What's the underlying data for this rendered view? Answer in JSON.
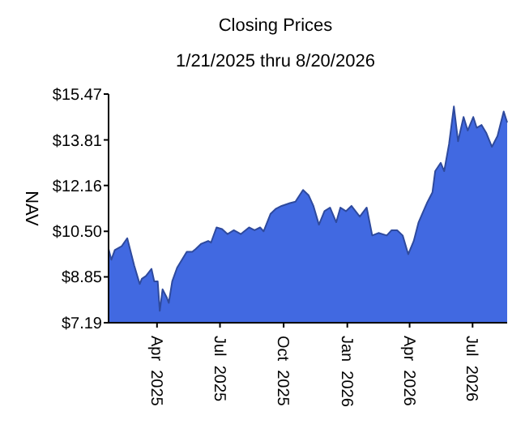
{
  "chart_data": {
    "type": "area",
    "title": "Closing Prices",
    "subtitle": "1/21/2025 thru 8/20/2026",
    "ylabel": "NAV",
    "x": [
      "2025-01-21",
      "2025-01-25",
      "2025-01-30",
      "2025-02-09",
      "2025-02-17",
      "2025-02-19",
      "2025-02-27",
      "2025-03-07",
      "2025-03-10",
      "2025-03-16",
      "2025-03-24",
      "2025-03-28",
      "2025-04-02",
      "2025-04-05",
      "2025-04-09",
      "2025-04-15",
      "2025-04-18",
      "2025-04-23",
      "2025-04-30",
      "2025-05-14",
      "2025-05-22",
      "2025-05-27",
      "2025-06-04",
      "2025-06-14",
      "2025-06-18",
      "2025-06-26",
      "2025-07-04",
      "2025-07-12",
      "2025-07-21",
      "2025-07-31",
      "2025-08-12",
      "2025-08-20",
      "2025-08-28",
      "2025-09-02",
      "2025-09-12",
      "2025-09-20",
      "2025-09-28",
      "2025-10-10",
      "2025-10-18",
      "2025-10-29",
      "2025-11-06",
      "2025-11-13",
      "2025-11-21",
      "2025-11-29",
      "2025-12-07",
      "2025-12-16",
      "2025-12-22",
      "2025-12-30",
      "2026-01-07",
      "2026-01-19",
      "2026-01-29",
      "2026-02-06",
      "2026-02-15",
      "2026-02-27",
      "2026-03-06",
      "2026-03-14",
      "2026-03-22",
      "2026-03-30",
      "2026-04-07",
      "2026-04-14",
      "2026-04-26",
      "2026-05-04",
      "2026-05-08",
      "2026-05-16",
      "2026-05-21",
      "2026-05-28",
      "2026-06-04",
      "2026-06-10",
      "2026-06-18",
      "2026-06-24",
      "2026-07-02",
      "2026-07-07",
      "2026-07-14",
      "2026-07-21",
      "2026-07-29",
      "2026-08-06",
      "2026-08-10",
      "2026-08-15",
      "2026-08-20"
    ],
    "series": [
      {
        "color": "#4169e1",
        "values": [
          9.86,
          9.47,
          9.82,
          9.96,
          10.25,
          10.05,
          9.27,
          8.59,
          8.78,
          8.88,
          9.14,
          8.69,
          8.69,
          7.62,
          8.4,
          8.11,
          7.91,
          8.69,
          9.18,
          9.76,
          9.76,
          9.86,
          10.05,
          10.15,
          10.09,
          10.64,
          10.58,
          10.4,
          10.54,
          10.4,
          10.64,
          10.54,
          10.64,
          10.5,
          11.13,
          11.32,
          11.42,
          11.52,
          11.57,
          12.0,
          11.81,
          11.42,
          10.74,
          11.23,
          11.36,
          10.83,
          11.36,
          11.23,
          11.42,
          11.03,
          11.36,
          10.35,
          10.44,
          10.35,
          10.54,
          10.54,
          10.35,
          9.67,
          10.15,
          10.83,
          11.52,
          11.91,
          12.68,
          12.98,
          12.68,
          13.66,
          15.02,
          13.76,
          14.64,
          14.15,
          14.64,
          14.25,
          14.35,
          14.05,
          13.56,
          13.95,
          14.35,
          14.84,
          14.44
        ]
      }
    ],
    "xlim": [
      "2025-01-21",
      "2026-08-20"
    ],
    "xticks": [
      {
        "value": "2025-04-01",
        "label": "Apr 2025"
      },
      {
        "value": "2025-07-01",
        "label": "Jul 2025"
      },
      {
        "value": "2025-10-01",
        "label": "Oct 2025"
      },
      {
        "value": "2026-01-01",
        "label": "Jan 2026"
      },
      {
        "value": "2026-04-01",
        "label": "Apr 2026"
      },
      {
        "value": "2026-07-01",
        "label": "Jul 2026"
      }
    ],
    "ylim": [
      7.19,
      15.47
    ],
    "yticks": [
      {
        "value": 7.19,
        "label": "$7.19"
      },
      {
        "value": 8.85,
        "label": "$8.85"
      },
      {
        "value": 10.5,
        "label": "$10.50"
      },
      {
        "value": 12.16,
        "label": "$12.16"
      },
      {
        "value": 13.81,
        "label": "$13.81"
      },
      {
        "value": 15.47,
        "label": "$15.47"
      }
    ],
    "grid": false
  }
}
